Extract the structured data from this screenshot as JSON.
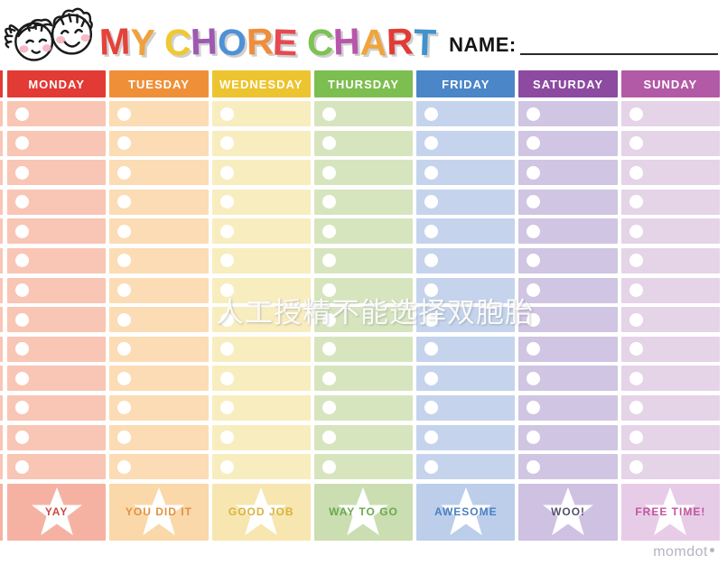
{
  "header": {
    "name_label": "NAME:",
    "kids_illustration": "two-kids-faces",
    "title_letters": [
      {
        "ch": "M",
        "color": "#e4423a"
      },
      {
        "ch": "Y",
        "color": "#f1a13c"
      },
      {
        "ch": " ",
        "color": ""
      },
      {
        "ch": "C",
        "color": "#f0c832"
      },
      {
        "ch": "H",
        "color": "#9e5ab0"
      },
      {
        "ch": "O",
        "color": "#4f90d6"
      },
      {
        "ch": "R",
        "color": "#f08d3b"
      },
      {
        "ch": "E",
        "color": "#e64a50"
      },
      {
        "ch": " ",
        "color": ""
      },
      {
        "ch": "C",
        "color": "#7dc253"
      },
      {
        "ch": "H",
        "color": "#b757ab"
      },
      {
        "ch": "A",
        "color": "#f0a43c"
      },
      {
        "ch": "R",
        "color": "#e03c35"
      },
      {
        "ch": "T",
        "color": "#4292cc"
      }
    ]
  },
  "rows_per_day": 13,
  "days": [
    {
      "label": "MONDAY",
      "header_color": "#e23a34",
      "cell_color": "#f9c5b4",
      "star_bg": "#f5b2a3",
      "star_label": "YAY",
      "star_label_color": "#cb4a43"
    },
    {
      "label": "TUESDAY",
      "header_color": "#ef9039",
      "cell_color": "#fbdcb4",
      "star_bg": "#fad8aa",
      "star_label": "YOU DID IT",
      "star_label_color": "#e2923e"
    },
    {
      "label": "WEDNESDAY",
      "header_color": "#ecc430",
      "cell_color": "#f8edbf",
      "star_bg": "#f7e6b0",
      "star_label": "GOOD JOB",
      "star_label_color": "#d9b23b"
    },
    {
      "label": "THURSDAY",
      "header_color": "#7cbe50",
      "cell_color": "#d7e5bf",
      "star_bg": "#cadeb2",
      "star_label": "WAY TO GO",
      "star_label_color": "#69a94d"
    },
    {
      "label": "FRIDAY",
      "header_color": "#4a86c8",
      "cell_color": "#c5d4ec",
      "star_bg": "#bccee9",
      "star_label": "AWESOME",
      "star_label_color": "#4a7fc3"
    },
    {
      "label": "SATURDAY",
      "header_color": "#8c4aa0",
      "cell_color": "#d0c5e2",
      "star_bg": "#cfc1e2",
      "star_label": "WOO!",
      "star_label_color": "#555069"
    },
    {
      "label": "SUNDAY",
      "header_color": "#b25aa6",
      "cell_color": "#e5d3e8",
      "star_bg": "#e7cce7",
      "star_label": "FREE TIME!",
      "star_label_color": "#c2559d"
    }
  ],
  "watermark": "人工授精不能选择双胞胎",
  "footer": {
    "brand": "momdot"
  }
}
